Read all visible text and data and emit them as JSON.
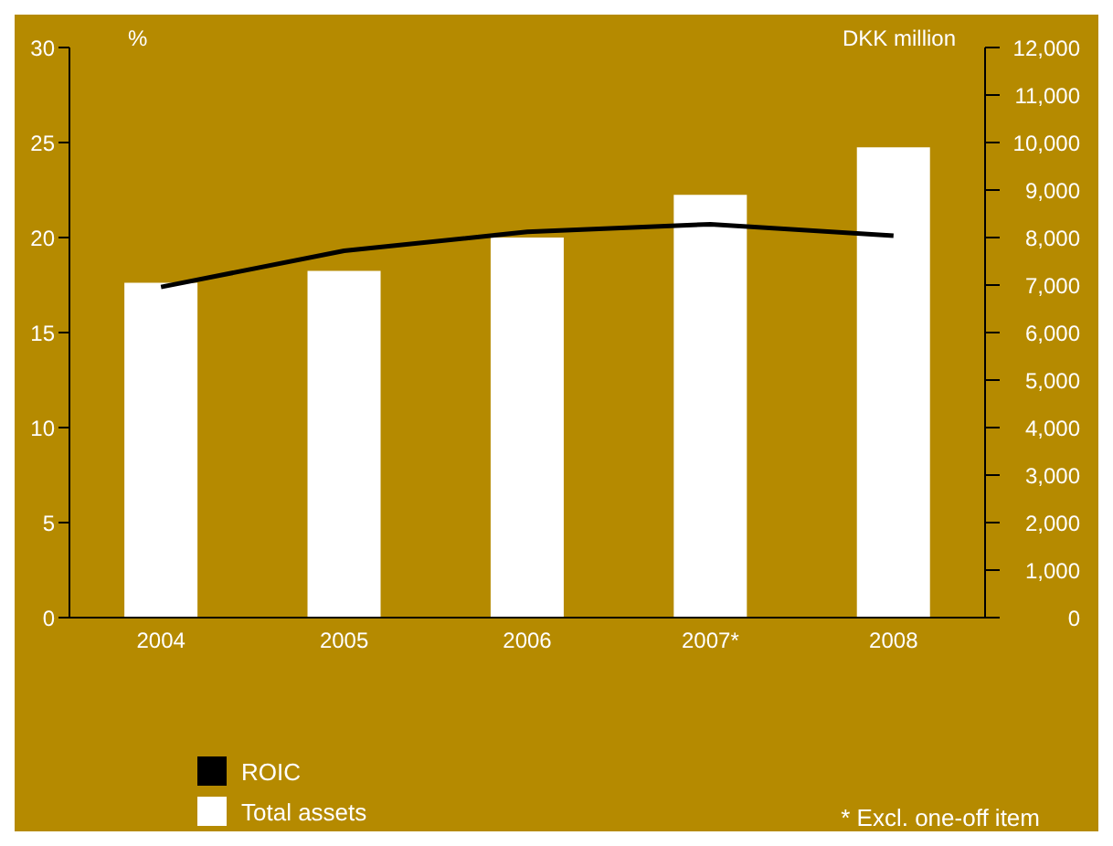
{
  "chart_data": {
    "type": "bar",
    "categories": [
      "2004",
      "2005",
      "2006",
      "2007*",
      "2008"
    ],
    "series": [
      {
        "name": "ROIC",
        "type": "line",
        "color": "#000000",
        "values": [
          17.4,
          19.3,
          20.3,
          20.7,
          20.1
        ]
      },
      {
        "name": "Total assets",
        "axis": "y2",
        "color": "#ffffff",
        "values": [
          7050,
          7300,
          8000,
          8900,
          9900
        ]
      }
    ],
    "ylabel": "%",
    "y2label": "DKK million",
    "ylim": [
      0,
      30
    ],
    "yticks": [
      0,
      5,
      10,
      15,
      20,
      25,
      30
    ],
    "y2lim": [
      0,
      12000
    ],
    "y2ticks": [
      0,
      {
        "value": 1000,
        "label": "1,000"
      },
      {
        "value": 2000,
        "label": "2,000"
      },
      {
        "value": 3000,
        "label": "3,000"
      },
      {
        "value": 4000,
        "label": "4,000"
      },
      {
        "value": 5000,
        "label": "5,000"
      },
      {
        "value": 6000,
        "label": "6,000"
      },
      {
        "value": 7000,
        "label": "7,000"
      },
      {
        "value": 8000,
        "label": "8,000"
      },
      {
        "value": 9000,
        "label": "9,000"
      },
      {
        "value": 10000,
        "label": "10,000"
      },
      {
        "value": 11000,
        "label": "11,000"
      },
      {
        "value": 12000,
        "label": "12,000"
      }
    ],
    "legend": "bottom left",
    "marker": "none",
    "annotations": [
      "* Excl. one-off item"
    ]
  }
}
